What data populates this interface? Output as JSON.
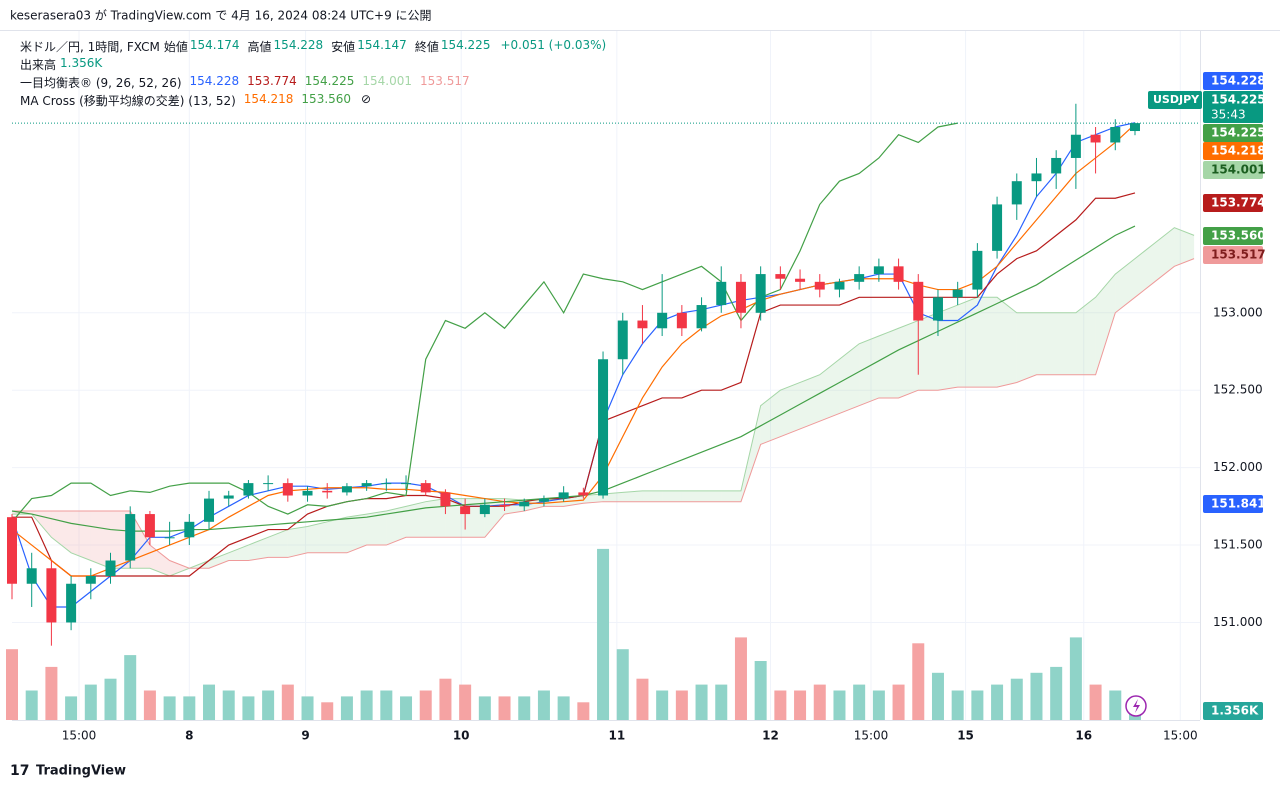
{
  "header": {
    "publisher": "keserasera03 が TradingView.com で 4月 16, 2024 08:24 UTC+9 に公開"
  },
  "legend": {
    "symbol": "米ドル／円, 1時間, FXCM",
    "ohlc": [
      {
        "label": "始値",
        "value": "154.174"
      },
      {
        "label": "高値",
        "value": "154.228"
      },
      {
        "label": "安値",
        "value": "154.147"
      },
      {
        "label": "終値",
        "value": "154.225"
      }
    ],
    "change": "+0.051 (+0.03%)",
    "volume": {
      "label": "出来高",
      "value": "1.356K"
    },
    "ichimoku": {
      "label": "一目均衡表® (9, 26, 52, 26)",
      "values": [
        "154.228",
        "153.774",
        "154.225",
        "154.001",
        "153.517"
      ],
      "colors": [
        "#2962ff",
        "#b71c1c",
        "#43a047",
        "#a5d6a7",
        "#ef9a9a"
      ]
    },
    "ma": {
      "label": "MA Cross (移動平均線の交差) (13, 52)",
      "values": [
        "154.218",
        "153.560"
      ],
      "colors": [
        "#ff6d00",
        "#43a047"
      ],
      "icon": "⊘"
    }
  },
  "price_scale": {
    "marker": "151.841",
    "symbol": "USDJPY",
    "last": "154.225",
    "countdown": "35:43"
  },
  "footer": {
    "brand": "TradingView"
  },
  "chart_data": {
    "type": "candlestick",
    "up_color": "#089981",
    "down_color": "#f23645",
    "xlim": [
      0,
      60.3
    ],
    "xticks": [
      {
        "value": 3.4,
        "label": "15:00"
      },
      {
        "value": 9.0,
        "label": "8"
      },
      {
        "value": 14.9,
        "label": "9"
      },
      {
        "value": 22.8,
        "label": "10"
      },
      {
        "value": 30.7,
        "label": "11"
      },
      {
        "value": 38.5,
        "label": "12"
      },
      {
        "value": 43.6,
        "label": "15:00"
      },
      {
        "value": 48.4,
        "label": "15"
      },
      {
        "value": 54.4,
        "label": "16"
      },
      {
        "value": 59.3,
        "label": "15:00"
      }
    ],
    "ylim": [
      150.37,
      154.82
    ],
    "yticks": [
      {
        "value": 151.0,
        "label": "151.000"
      },
      {
        "value": 151.5,
        "label": "151.500"
      },
      {
        "value": 152.0,
        "label": "152.000"
      },
      {
        "value": 152.5,
        "label": "152.500"
      },
      {
        "value": 153.0,
        "label": "153.000"
      }
    ],
    "grid": true,
    "open": [
      151.68,
      151.25,
      151.35,
      151.0,
      151.25,
      151.3,
      151.4,
      151.7,
      151.55,
      151.55,
      151.65,
      151.8,
      151.82,
      151.9,
      151.9,
      151.82,
      151.85,
      151.84,
      151.88,
      151.9,
      151.9,
      151.9,
      151.84,
      151.75,
      151.7,
      151.76,
      151.75,
      151.78,
      151.8,
      151.84,
      151.82,
      152.7,
      152.95,
      152.9,
      153.0,
      152.9,
      153.05,
      153.2,
      153.0,
      153.25,
      153.22,
      153.2,
      153.15,
      153.2,
      153.25,
      153.3,
      153.2,
      152.95,
      153.1,
      153.15,
      153.4,
      153.7,
      153.85,
      153.9,
      154.0,
      154.15,
      154.1,
      154.174
    ],
    "high": [
      151.7,
      151.45,
      151.4,
      151.3,
      151.35,
      151.45,
      151.75,
      151.72,
      151.65,
      151.7,
      151.85,
      151.85,
      151.92,
      151.95,
      151.93,
      151.88,
      151.9,
      151.9,
      151.92,
      151.93,
      151.95,
      151.92,
      151.86,
      151.8,
      151.8,
      151.8,
      151.8,
      151.82,
      151.88,
      151.87,
      152.75,
      153.0,
      153.05,
      153.25,
      153.05,
      153.1,
      153.3,
      153.25,
      153.3,
      153.3,
      153.28,
      153.25,
      153.22,
      153.3,
      153.35,
      153.35,
      153.25,
      153.15,
      153.2,
      153.45,
      153.75,
      153.9,
      154.0,
      154.05,
      154.35,
      154.2,
      154.25,
      154.228
    ],
    "low": [
      151.15,
      151.1,
      150.85,
      150.95,
      151.15,
      151.25,
      151.35,
      151.5,
      151.5,
      151.5,
      151.6,
      151.75,
      151.8,
      151.85,
      151.78,
      151.78,
      151.8,
      151.82,
      151.85,
      151.85,
      151.85,
      151.82,
      151.7,
      151.6,
      151.68,
      151.72,
      151.72,
      151.75,
      151.78,
      151.8,
      151.8,
      152.6,
      152.8,
      152.85,
      152.85,
      152.88,
      153.0,
      152.9,
      152.95,
      153.15,
      153.15,
      153.1,
      153.1,
      153.15,
      153.2,
      153.15,
      152.6,
      152.85,
      153.05,
      153.1,
      153.35,
      153.6,
      153.75,
      153.8,
      153.8,
      153.9,
      154.05,
      154.147
    ],
    "close": [
      151.25,
      151.35,
      151.0,
      151.25,
      151.3,
      151.4,
      151.7,
      151.55,
      151.55,
      151.65,
      151.8,
      151.82,
      151.9,
      151.9,
      151.82,
      151.85,
      151.84,
      151.88,
      151.9,
      151.9,
      151.9,
      151.84,
      151.75,
      151.7,
      151.76,
      151.75,
      151.78,
      151.8,
      151.84,
      151.82,
      152.7,
      152.95,
      152.9,
      153.0,
      152.9,
      153.05,
      153.2,
      153.0,
      153.25,
      153.22,
      153.2,
      153.15,
      153.2,
      153.25,
      153.3,
      153.2,
      152.95,
      153.1,
      153.15,
      153.4,
      153.7,
      153.85,
      153.9,
      154.0,
      154.15,
      154.1,
      154.2,
      154.225
    ],
    "volume": {
      "up_color": "#8fd3c8",
      "down_color": "#f5a3a3",
      "vlim": [
        0,
        30
      ],
      "values": [
        12,
        5,
        9,
        4,
        6,
        7,
        11,
        5,
        4,
        4,
        6,
        5,
        4,
        5,
        6,
        4,
        3,
        4,
        5,
        5,
        4,
        5,
        7,
        6,
        4,
        4,
        4,
        5,
        4,
        3,
        29,
        12,
        7,
        5,
        5,
        6,
        6,
        14,
        10,
        5,
        5,
        6,
        5,
        6,
        5,
        6,
        13,
        8,
        5,
        5,
        6,
        7,
        8,
        9,
        14,
        6,
        5,
        1.356
      ]
    },
    "series": [
      {
        "color": "#2962ff",
        "values": [
          151.68,
          151.3,
          151.1,
          151.1,
          151.2,
          151.3,
          151.4,
          151.55,
          151.55,
          151.6,
          151.68,
          151.75,
          151.82,
          151.85,
          151.88,
          151.88,
          151.86,
          151.87,
          151.88,
          151.9,
          151.9,
          151.88,
          151.82,
          151.75,
          151.75,
          151.76,
          151.76,
          151.78,
          151.8,
          151.82,
          152.3,
          152.6,
          152.8,
          152.95,
          153.0,
          153.02,
          153.05,
          153.08,
          153.1,
          153.12,
          153.15,
          153.18,
          153.2,
          153.22,
          153.25,
          153.25,
          153.0,
          152.95,
          152.95,
          153.05,
          153.3,
          153.5,
          153.75,
          153.9,
          154.1,
          154.15,
          154.2,
          154.228
        ]
      },
      {
        "color": "#b71c1c",
        "values": [
          151.68,
          151.68,
          151.4,
          151.3,
          151.3,
          151.3,
          151.3,
          151.3,
          151.3,
          151.3,
          151.4,
          151.5,
          151.55,
          151.6,
          151.6,
          151.7,
          151.75,
          151.78,
          151.8,
          151.8,
          151.82,
          151.82,
          151.8,
          151.75,
          151.75,
          151.75,
          151.78,
          151.8,
          151.8,
          151.82,
          152.3,
          152.35,
          152.4,
          152.45,
          152.45,
          152.5,
          152.5,
          152.55,
          153.0,
          153.05,
          153.05,
          153.05,
          153.05,
          153.1,
          153.1,
          153.1,
          153.1,
          153.1,
          153.1,
          153.1,
          153.25,
          153.35,
          153.4,
          153.5,
          153.6,
          153.74,
          153.74,
          153.774
        ]
      },
      {
        "color": "#43a047",
        "values": [
          151.65,
          151.8,
          151.82,
          151.9,
          151.9,
          151.82,
          151.85,
          151.84,
          151.88,
          151.9,
          151.9,
          151.9,
          151.84,
          151.75,
          151.7,
          151.76,
          151.75,
          151.78,
          151.8,
          151.84,
          151.82,
          152.7,
          152.95,
          152.9,
          153.0,
          152.9,
          153.05,
          153.2,
          153.0,
          153.25,
          153.22,
          153.2,
          153.15,
          153.2,
          153.25,
          153.3,
          153.2,
          152.95,
          153.1,
          153.15,
          153.4,
          153.7,
          153.85,
          153.9,
          154.0,
          154.15,
          154.1,
          154.2,
          154.225,
          null,
          null,
          null,
          null,
          null,
          null,
          null,
          null,
          null
        ]
      },
      {
        "color": "#ff6d00",
        "values": [
          151.6,
          151.5,
          151.4,
          151.3,
          151.3,
          151.35,
          151.4,
          151.45,
          151.5,
          151.55,
          151.6,
          151.68,
          151.75,
          151.82,
          151.85,
          151.86,
          151.87,
          151.87,
          151.87,
          151.86,
          151.86,
          151.85,
          151.84,
          151.82,
          151.8,
          151.78,
          151.77,
          151.77,
          151.78,
          151.79,
          151.95,
          152.2,
          152.45,
          152.65,
          152.8,
          152.9,
          152.98,
          153.02,
          153.08,
          153.12,
          153.15,
          153.18,
          153.2,
          153.22,
          153.22,
          153.22,
          153.18,
          153.15,
          153.15,
          153.2,
          153.3,
          153.45,
          153.6,
          153.75,
          153.9,
          154.0,
          154.1,
          154.218
        ]
      },
      {
        "color": "#43a047",
        "values": [
          151.72,
          151.7,
          151.67,
          151.64,
          151.62,
          151.6,
          151.59,
          151.59,
          151.59,
          151.6,
          151.6,
          151.61,
          151.62,
          151.63,
          151.64,
          151.65,
          151.66,
          151.67,
          151.68,
          151.7,
          151.72,
          151.74,
          151.75,
          151.76,
          151.77,
          151.78,
          151.79,
          151.8,
          151.81,
          151.82,
          151.85,
          151.9,
          151.95,
          152.0,
          152.05,
          152.1,
          152.15,
          152.2,
          152.27,
          152.34,
          152.41,
          152.48,
          152.55,
          152.62,
          152.69,
          152.76,
          152.82,
          152.88,
          152.94,
          153.0,
          153.06,
          153.12,
          153.18,
          153.26,
          153.34,
          153.42,
          153.5,
          153.56
        ]
      }
    ],
    "cloud": {
      "up_color": "#a5d6a7",
      "down_color": "#ef9a9a",
      "span_a": [
        151.7,
        151.7,
        151.55,
        151.45,
        151.4,
        151.35,
        151.35,
        151.35,
        151.3,
        151.35,
        151.4,
        151.45,
        151.5,
        151.55,
        151.6,
        151.62,
        151.65,
        151.68,
        151.7,
        151.72,
        151.75,
        151.78,
        151.8,
        151.8,
        151.8,
        151.8,
        151.79,
        151.79,
        151.8,
        151.82,
        151.83,
        151.84,
        151.85,
        151.85,
        151.85,
        151.85,
        151.85,
        151.85,
        152.4,
        152.5,
        152.55,
        152.6,
        152.7,
        152.8,
        152.85,
        152.9,
        152.95,
        153.0,
        153.05,
        153.1,
        153.1,
        153.0,
        153.0,
        153.0,
        153.0,
        153.1,
        153.25,
        153.35,
        153.45,
        153.55,
        153.5
      ],
      "span_b": [
        151.72,
        151.72,
        151.72,
        151.72,
        151.72,
        151.72,
        151.72,
        151.5,
        151.4,
        151.35,
        151.35,
        151.4,
        151.4,
        151.42,
        151.42,
        151.45,
        151.45,
        151.45,
        151.5,
        151.5,
        151.55,
        151.55,
        151.55,
        151.55,
        151.55,
        151.7,
        151.72,
        151.75,
        151.75,
        151.77,
        151.78,
        151.78,
        151.78,
        151.78,
        151.78,
        151.78,
        151.78,
        151.78,
        152.15,
        152.2,
        152.25,
        152.3,
        152.35,
        152.4,
        152.45,
        152.45,
        152.5,
        152.5,
        152.52,
        152.52,
        152.52,
        152.55,
        152.6,
        152.6,
        152.6,
        152.6,
        153.0,
        153.1,
        153.2,
        153.3,
        153.35
      ]
    }
  }
}
